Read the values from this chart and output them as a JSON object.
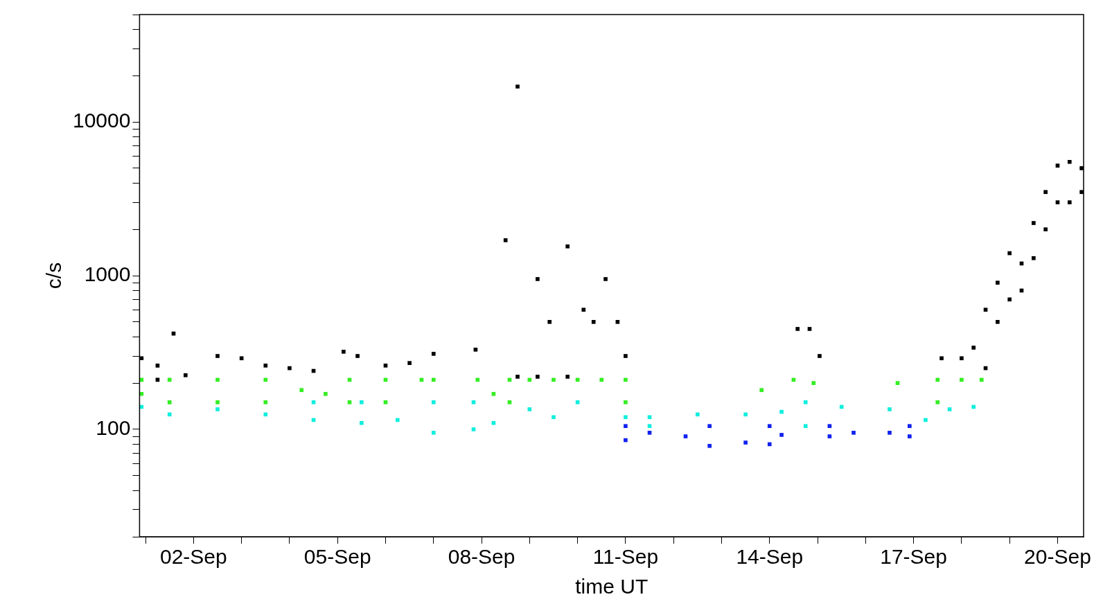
{
  "chart_data": {
    "type": "scatter",
    "xlabel": "time UT",
    "ylabel": "c/s",
    "log": "y",
    "marker": "square",
    "legend": false,
    "xlim": [
      "--08-31T21:00",
      "--09-20T13:00"
    ],
    "xticks": [
      {
        "value": "--09-01",
        "label": null
      },
      {
        "value": "--09-02",
        "label": "02-Sep"
      },
      {
        "value": "--09-03",
        "label": null
      },
      {
        "value": "--09-04",
        "label": null
      },
      {
        "value": "--09-05",
        "label": "05-Sep"
      },
      {
        "value": "--09-06",
        "label": null
      },
      {
        "value": "--09-07",
        "label": null
      },
      {
        "value": "--09-08",
        "label": "08-Sep"
      },
      {
        "value": "--09-09",
        "label": null
      },
      {
        "value": "--09-10",
        "label": null
      },
      {
        "value": "--09-11",
        "label": "11-Sep"
      },
      {
        "value": "--09-12",
        "label": null
      },
      {
        "value": "--09-13",
        "label": null
      },
      {
        "value": "--09-14",
        "label": "14-Sep"
      },
      {
        "value": "--09-15",
        "label": null
      },
      {
        "value": "--09-16",
        "label": null
      },
      {
        "value": "--09-17",
        "label": "17-Sep"
      },
      {
        "value": "--09-18",
        "label": null
      },
      {
        "value": "--09-19",
        "label": null
      },
      {
        "value": "--09-20",
        "label": "20-Sep"
      }
    ],
    "ylim": [
      20,
      50000
    ],
    "yticks": [
      {
        "value": 20,
        "label": null
      },
      {
        "value": 30,
        "label": null
      },
      {
        "value": 40,
        "label": null
      },
      {
        "value": 50,
        "label": null
      },
      {
        "value": 60,
        "label": null
      },
      {
        "value": 70,
        "label": null
      },
      {
        "value": 80,
        "label": null
      },
      {
        "value": 90,
        "label": null
      },
      100,
      {
        "value": 200,
        "label": null
      },
      {
        "value": 300,
        "label": null
      },
      {
        "value": 400,
        "label": null
      },
      {
        "value": 500,
        "label": null
      },
      {
        "value": 600,
        "label": null
      },
      {
        "value": 700,
        "label": null
      },
      {
        "value": 800,
        "label": null
      },
      {
        "value": 900,
        "label": null
      },
      1000,
      {
        "value": 2000,
        "label": null
      },
      {
        "value": 3000,
        "label": null
      },
      {
        "value": 4000,
        "label": null
      },
      {
        "value": 5000,
        "label": null
      },
      {
        "value": 6000,
        "label": null
      },
      {
        "value": 7000,
        "label": null
      },
      {
        "value": 8000,
        "label": null
      },
      {
        "value": 9000,
        "label": null
      },
      10000,
      {
        "value": 20000,
        "label": null
      },
      {
        "value": 30000,
        "label": null
      },
      {
        "value": 40000,
        "label": null
      },
      {
        "value": 50000,
        "label": null
      }
    ],
    "series": [
      {
        "color": "#000000",
        "x": [
          "--08-31T22:00",
          "--09-01T06:00",
          "--09-01T06:00",
          "--09-01T14:00",
          "--09-01T20:00",
          "--09-02T12:00",
          "--09-03T00:00",
          "--09-03T12:00",
          "--09-04T00:00",
          "--09-04T12:00",
          "--09-05T03:00",
          "--09-05T10:00",
          "--09-06T00:00",
          "--09-06T12:00",
          "--09-07T00:00",
          "--09-07T21:00",
          "--09-08T12:00",
          "--09-08T18:00",
          "--09-08T18:00",
          "--09-09T04:00",
          "--09-09T04:00",
          "--09-09T10:00",
          "--09-09T19:00",
          "--09-09T19:00",
          "--09-10T03:00",
          "--09-10T08:00",
          "--09-10T14:00",
          "--09-10T20:00",
          "--09-11T00:00",
          "--09-14T14:00",
          "--09-14T20:00",
          "--09-15T01:00",
          "--09-17T14:00",
          "--09-18T00:00",
          "--09-18T06:00",
          "--09-18T12:00",
          "--09-18T12:00",
          "--09-18T18:00",
          "--09-18T18:00",
          "--09-19T00:00",
          "--09-19T00:00",
          "--09-19T06:00",
          "--09-19T06:00",
          "--09-19T12:00",
          "--09-19T12:00",
          "--09-19T18:00",
          "--09-19T18:00",
          "--09-20T00:00",
          "--09-20T00:00",
          "--09-20T06:00",
          "--09-20T06:00",
          "--09-20T12:00",
          "--09-20T12:00"
        ],
        "values": [
          290,
          260,
          210,
          420,
          225,
          300,
          290,
          260,
          250,
          240,
          320,
          300,
          260,
          270,
          310,
          330,
          1700,
          17000,
          220,
          950,
          220,
          500,
          1550,
          220,
          600,
          500,
          950,
          500,
          300,
          450,
          450,
          300,
          290,
          290,
          340,
          600,
          250,
          900,
          500,
          1400,
          700,
          1200,
          800,
          2200,
          1300,
          3500,
          2000,
          5200,
          3000,
          5500,
          3000,
          5000,
          3500
        ]
      },
      {
        "color": "#33ee22",
        "x": [
          "--08-31T22:00",
          "--08-31T22:00",
          "--09-01T12:00",
          "--09-01T12:00",
          "--09-02T12:00",
          "--09-02T12:00",
          "--09-03T12:00",
          "--09-03T12:00",
          "--09-04T06:00",
          "--09-04T18:00",
          "--09-05T06:00",
          "--09-05T06:00",
          "--09-06T00:00",
          "--09-06T00:00",
          "--09-06T18:00",
          "--09-07T00:00",
          "--09-07T22:00",
          "--09-08T06:00",
          "--09-08T14:00",
          "--09-08T14:00",
          "--09-09T00:00",
          "--09-09T12:00",
          "--09-10T00:00",
          "--09-10T12:00",
          "--09-11T00:00",
          "--09-11T00:00",
          "--09-13T20:00",
          "--09-14T12:00",
          "--09-14T22:00",
          "--09-16T16:00",
          "--09-17T12:00",
          "--09-17T12:00",
          "--09-18T00:00",
          "--09-18T10:00"
        ],
        "values": [
          210,
          170,
          210,
          150,
          210,
          150,
          210,
          150,
          180,
          170,
          210,
          150,
          210,
          150,
          210,
          210,
          210,
          170,
          210,
          150,
          210,
          210,
          210,
          210,
          210,
          150,
          180,
          210,
          200,
          200,
          210,
          150,
          210,
          210
        ]
      },
      {
        "color": "#11eedd",
        "x": [
          "--08-31T22:00",
          "--09-01T12:00",
          "--09-02T12:00",
          "--09-03T12:00",
          "--09-04T12:00",
          "--09-04T12:00",
          "--09-05T12:00",
          "--09-05T12:00",
          "--09-06T06:00",
          "--09-07T00:00",
          "--09-07T00:00",
          "--09-07T20:00",
          "--09-07T20:00",
          "--09-08T06:00",
          "--09-09T00:00",
          "--09-09T12:00",
          "--09-10T00:00",
          "--09-11T00:00",
          "--09-11T12:00",
          "--09-11T12:00",
          "--09-12T12:00",
          "--09-13T12:00",
          "--09-14T06:00",
          "--09-14T18:00",
          "--09-14T18:00",
          "--09-15T12:00",
          "--09-16T12:00",
          "--09-17T06:00",
          "--09-17T18:00",
          "--09-18T06:00"
        ],
        "values": [
          140,
          125,
          135,
          125,
          150,
          115,
          150,
          110,
          115,
          150,
          95,
          150,
          100,
          110,
          135,
          120,
          150,
          120,
          120,
          105,
          125,
          125,
          130,
          150,
          105,
          140,
          135,
          115,
          135,
          140
        ]
      },
      {
        "color": "#1122ee",
        "x": [
          "--09-11T00:00",
          "--09-11T00:00",
          "--09-11T12:00",
          "--09-12T06:00",
          "--09-12T18:00",
          "--09-12T18:00",
          "--09-13T12:00",
          "--09-14T00:00",
          "--09-14T00:00",
          "--09-14T06:00",
          "--09-15T06:00",
          "--09-15T06:00",
          "--09-15T18:00",
          "--09-16T12:00",
          "--09-16T22:00",
          "--09-16T22:00"
        ],
        "values": [
          105,
          85,
          95,
          90,
          105,
          78,
          82,
          105,
          80,
          92,
          105,
          90,
          95,
          95,
          105,
          90
        ]
      }
    ]
  }
}
